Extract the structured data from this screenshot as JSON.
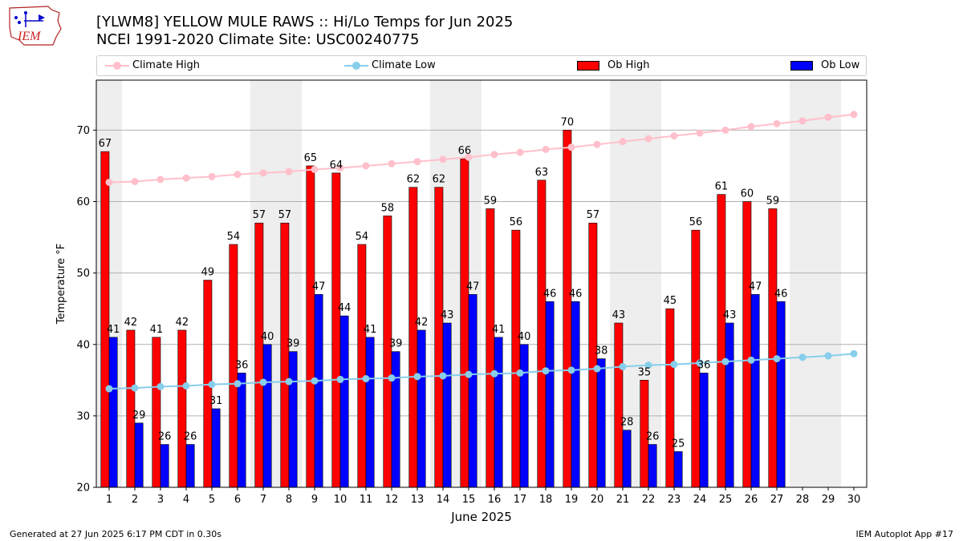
{
  "title": {
    "line1": "[YLWM8] YELLOW MULE RAWS :: Hi/Lo Temps for Jun 2025",
    "line2": "NCEI 1991-2020 Climate Site: USC00240775"
  },
  "logo_text": "IEM",
  "footer": {
    "left": "Generated at 27 Jun 2025 6:17 PM CDT in 0.30s",
    "right": "IEM Autoplot App #17"
  },
  "colors": {
    "ob_high": "#ff0000",
    "ob_low": "#0000ff",
    "climate_high": "#ffc0cb",
    "climate_low": "#87ceeb",
    "weekend_band": "#eeeeee",
    "grid": "#b0b0b0"
  },
  "legend": {
    "placement": "top, above plot",
    "items": [
      {
        "key": "climate_high",
        "label": "Climate High"
      },
      {
        "key": "climate_low",
        "label": "Climate Low"
      },
      {
        "key": "ob_high",
        "label": "Ob High"
      },
      {
        "key": "ob_low",
        "label": "Ob Low"
      }
    ]
  },
  "chart_data": {
    "type": "bar",
    "xlabel": "June 2025",
    "ylabel": "Temperature °F",
    "ylim": [
      20,
      77
    ],
    "xlim": [
      0.5,
      30.5
    ],
    "yticks": [
      20,
      30,
      40,
      50,
      60,
      70
    ],
    "grid": "horizontal",
    "days": [
      1,
      2,
      3,
      4,
      5,
      6,
      7,
      8,
      9,
      10,
      11,
      12,
      13,
      14,
      15,
      16,
      17,
      18,
      19,
      20,
      21,
      22,
      23,
      24,
      25,
      26,
      27,
      28,
      29,
      30
    ],
    "weekend_bands": [
      [
        1,
        1
      ],
      [
        7,
        8
      ],
      [
        14,
        15
      ],
      [
        21,
        22
      ],
      [
        28,
        29
      ]
    ],
    "series": [
      {
        "name": "Ob High",
        "kind": "bar",
        "values": [
          67,
          42,
          41,
          42,
          49,
          54,
          57,
          57,
          65,
          64,
          54,
          58,
          62,
          62,
          66,
          59,
          56,
          63,
          70,
          57,
          43,
          35,
          45,
          56,
          61,
          60,
          59,
          null,
          null,
          null
        ]
      },
      {
        "name": "Ob Low",
        "kind": "bar",
        "values": [
          41,
          29,
          26,
          26,
          31,
          36,
          40,
          39,
          47,
          44,
          41,
          39,
          42,
          43,
          47,
          41,
          40,
          46,
          46,
          38,
          28,
          26,
          25,
          36,
          43,
          47,
          46,
          null,
          null,
          null
        ]
      },
      {
        "name": "Climate High",
        "kind": "line",
        "values": [
          62.7,
          62.8,
          63.1,
          63.3,
          63.5,
          63.8,
          64.0,
          64.2,
          64.5,
          64.7,
          65.0,
          65.3,
          65.6,
          65.9,
          66.2,
          66.6,
          66.9,
          67.3,
          67.6,
          68.0,
          68.4,
          68.8,
          69.2,
          69.6,
          70.0,
          70.5,
          70.9,
          71.3,
          71.8,
          72.2
        ]
      },
      {
        "name": "Climate Low",
        "kind": "line",
        "values": [
          33.8,
          33.9,
          34.1,
          34.2,
          34.4,
          34.5,
          34.7,
          34.8,
          34.9,
          35.1,
          35.2,
          35.3,
          35.5,
          35.6,
          35.8,
          35.9,
          36.0,
          36.3,
          36.4,
          36.6,
          36.9,
          37.1,
          37.2,
          37.4,
          37.6,
          37.8,
          38.0,
          38.2,
          38.4,
          38.7
        ]
      }
    ]
  }
}
